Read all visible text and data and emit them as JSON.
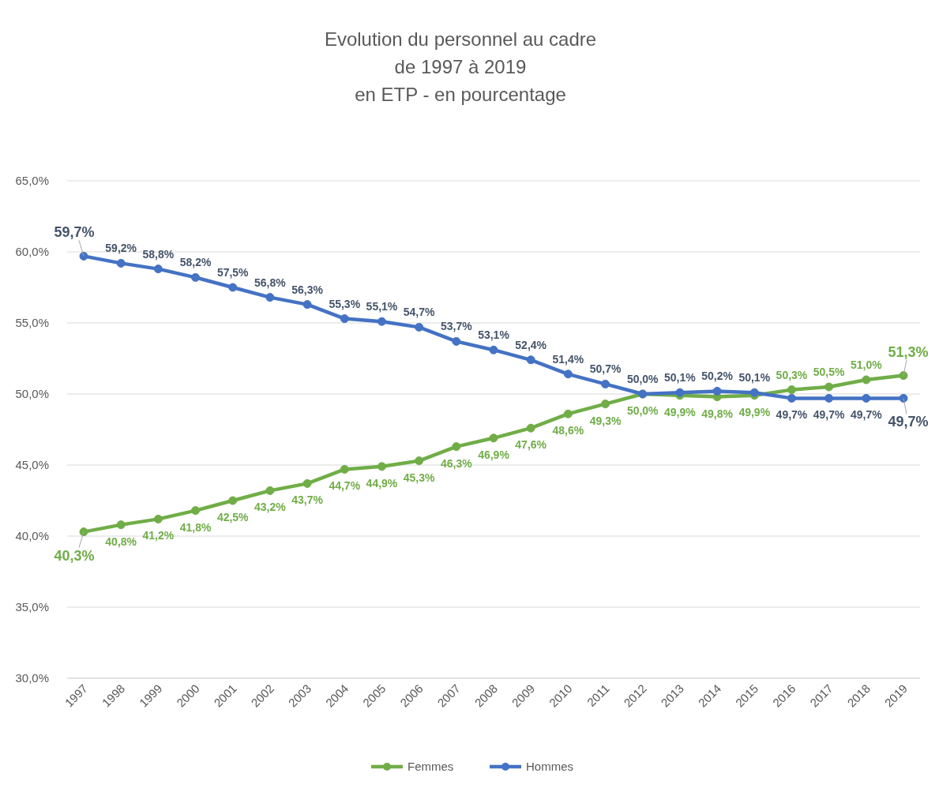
{
  "chart_data": {
    "type": "line",
    "title": "Evolution du personnel au cadre\nde 1997 à 2019\nen ETP - en pourcentage",
    "categories": [
      "1997",
      "1998",
      "1999",
      "2000",
      "2001",
      "2002",
      "2003",
      "2004",
      "2005",
      "2006",
      "2007",
      "2008",
      "2009",
      "2010",
      "2011",
      "2012",
      "2013",
      "2014",
      "2015",
      "2016",
      "2017",
      "2018",
      "2019"
    ],
    "series": [
      {
        "name": "Femmes",
        "color": "#70ad47",
        "values": [
          40.3,
          40.8,
          41.2,
          41.8,
          42.5,
          43.2,
          43.7,
          44.7,
          44.9,
          45.3,
          46.3,
          46.9,
          47.6,
          48.6,
          49.3,
          50.0,
          49.9,
          49.8,
          49.9,
          50.3,
          50.5,
          51.0,
          51.3
        ],
        "value_labels": [
          "40,3%",
          "40,8%",
          "41,2%",
          "41,8%",
          "42,5%",
          "43,2%",
          "43,7%",
          "44,7%",
          "44,9%",
          "45,3%",
          "46,3%",
          "46,9%",
          "47,6%",
          "48,6%",
          "49,3%",
          "50,0%",
          "49,9%",
          "49,8%",
          "49,9%",
          "50,3%",
          "50,5%",
          "51,0%",
          "51,3%"
        ]
      },
      {
        "name": "Hommes",
        "color": "#4472c4",
        "values": [
          59.7,
          59.2,
          58.8,
          58.2,
          57.5,
          56.8,
          56.3,
          55.3,
          55.1,
          54.7,
          53.7,
          53.1,
          52.4,
          51.4,
          50.7,
          50.0,
          50.1,
          50.2,
          50.1,
          49.7,
          49.7,
          49.7,
          49.7
        ],
        "value_labels": [
          "59,7%",
          "59,2%",
          "58,8%",
          "58,2%",
          "57,5%",
          "56,8%",
          "56,3%",
          "55,3%",
          "55,1%",
          "54,7%",
          "53,7%",
          "53,1%",
          "52,4%",
          "51,4%",
          "50,7%",
          "50,0%",
          "50,1%",
          "50,2%",
          "50,1%",
          "49,7%",
          "49,7%",
          "49,7%",
          "49,7%"
        ]
      }
    ],
    "ylim": [
      30,
      65
    ],
    "yticks": [
      {
        "value": 30,
        "label": "30,0%"
      },
      {
        "value": 35,
        "label": "35,0%"
      },
      {
        "value": 40,
        "label": "40,0%"
      },
      {
        "value": 45,
        "label": "45,0%"
      },
      {
        "value": 50,
        "label": "50,0%"
      },
      {
        "value": 55,
        "label": "55,0%"
      },
      {
        "value": 60,
        "label": "60,0%"
      },
      {
        "value": 65,
        "label": "65,0%"
      }
    ],
    "grid": "y",
    "legend": "bottom",
    "marker": "circle",
    "line_style": "solid"
  }
}
